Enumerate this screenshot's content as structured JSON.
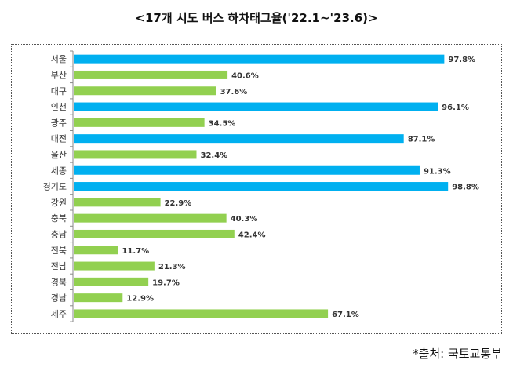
{
  "title": "<17개 시도 버스 하차태그율('22.1~'23.6)>",
  "source": "*출처: 국토교통부",
  "colors": {
    "blue": "#00B0F0",
    "green": "#92D050",
    "axis": "#888888",
    "text": "#333333"
  },
  "chart_data": {
    "type": "bar",
    "orientation": "horizontal",
    "title": "<17개 시도 버스 하차태그율('22.1~'23.6)>",
    "categories": [
      "서울",
      "부산",
      "대구",
      "인천",
      "광주",
      "대전",
      "울산",
      "세종",
      "경기도",
      "강원",
      "충북",
      "충남",
      "전북",
      "전남",
      "경북",
      "경남",
      "제주"
    ],
    "values": [
      97.8,
      40.6,
      37.6,
      96.1,
      34.5,
      87.1,
      32.4,
      91.3,
      98.8,
      22.9,
      40.3,
      42.4,
      11.7,
      21.3,
      19.7,
      12.9,
      67.1
    ],
    "data_labels": [
      "97.8%",
      "40.6%",
      "37.6%",
      "96.1%",
      "34.5%",
      "87.1%",
      "32.4%",
      "91.3%",
      "98.8%",
      "22.9%",
      "40.3%",
      "42.4%",
      "11.7%",
      "21.3%",
      "19.7%",
      "12.9%",
      "67.1%"
    ],
    "bar_colors": [
      "blue",
      "green",
      "green",
      "blue",
      "green",
      "blue",
      "green",
      "blue",
      "blue",
      "green",
      "green",
      "green",
      "green",
      "green",
      "green",
      "green",
      "green"
    ],
    "unit": "%",
    "xlim": [
      0,
      100
    ],
    "grid": false,
    "legend": "none"
  }
}
